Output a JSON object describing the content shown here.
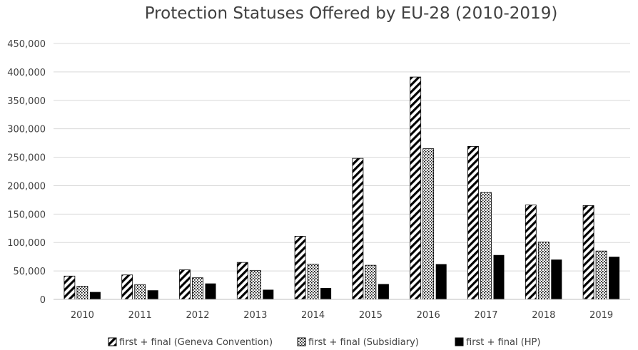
{
  "chart_data": {
    "type": "bar",
    "title": "Protection Statuses Offered by EU-28 (2010-2019)",
    "xlabel": "",
    "ylabel": "",
    "ylim": [
      0,
      450000
    ],
    "yticks": [
      0,
      50000,
      100000,
      150000,
      200000,
      250000,
      300000,
      350000,
      400000,
      450000
    ],
    "ytick_labels": [
      "0",
      "50,000",
      "100,000",
      "150,000",
      "200,000",
      "250,000",
      "300,000",
      "350,000",
      "400,000",
      "450,000"
    ],
    "categories": [
      "2010",
      "2011",
      "2012",
      "2013",
      "2014",
      "2015",
      "2016",
      "2017",
      "2018",
      "2019"
    ],
    "grid": true,
    "legend_position": "bottom",
    "series": [
      {
        "name": "first + final (Geneva Convention)",
        "pattern": "diagonal-stripes",
        "values": [
          41000,
          43000,
          52000,
          65000,
          111000,
          248000,
          391000,
          269000,
          166000,
          165000
        ]
      },
      {
        "name": "first + final (Subsidiary)",
        "pattern": "dots",
        "values": [
          23000,
          26000,
          38000,
          51000,
          62000,
          60000,
          265000,
          188000,
          101000,
          85000
        ]
      },
      {
        "name": "first + final (HP)",
        "pattern": "solid",
        "values": [
          13000,
          16000,
          28000,
          17000,
          20000,
          27000,
          62000,
          78000,
          70000,
          75000
        ]
      }
    ],
    "colors": {
      "bar": "#000000",
      "grid": "#d9d9d9",
      "text": "#404040",
      "axis": "#bfbfbf"
    }
  }
}
